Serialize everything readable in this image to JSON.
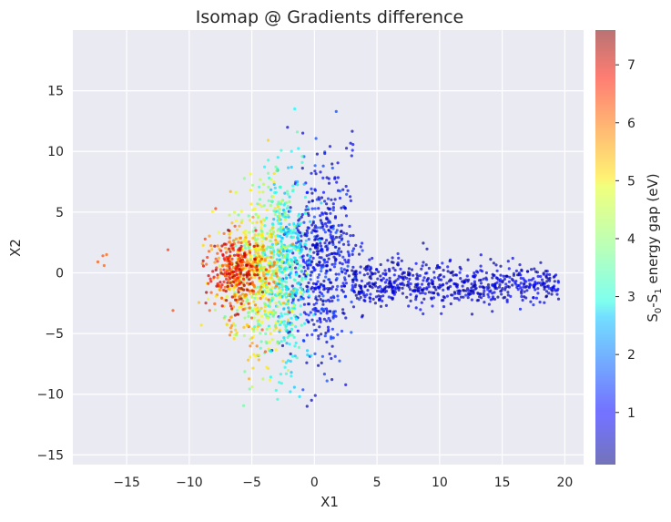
{
  "chart_data": {
    "type": "scatter",
    "title": "Isomap @ Gradients difference",
    "xlabel": "X1",
    "ylabel": "X2",
    "xlim": [
      -19.3,
      21.5
    ],
    "ylim": [
      -15.8,
      20.0
    ],
    "xticks": [
      -15,
      -10,
      -5,
      0,
      5,
      10,
      15,
      20
    ],
    "yticks": [
      -15,
      -10,
      -5,
      0,
      5,
      10,
      15
    ],
    "grid": true,
    "colorbar": {
      "label_main": "S",
      "label_sub0": "0",
      "label_mid": "-S",
      "label_sub1": "1",
      "label_tail": " energy gap (eV)",
      "colormap": "jet",
      "range": [
        0.1,
        7.6
      ],
      "ticks": [
        1,
        2,
        3,
        4,
        5,
        6,
        7
      ]
    },
    "colors": {
      "background": "#eaeaf2",
      "grid": "#ffffff",
      "text": "#262626"
    },
    "clusters": [
      {
        "name": "outliers-far-left",
        "points": [
          [
            -17.3,
            0.9,
            6.1
          ],
          [
            -16.9,
            1.4,
            6.1
          ],
          [
            -16.6,
            1.5,
            6.0
          ],
          [
            -16.8,
            0.6,
            6.0
          ],
          [
            -11.7,
            1.9,
            6.3
          ],
          [
            -11.3,
            -3.1,
            6.2
          ]
        ]
      },
      {
        "name": "red-core",
        "center": [
          -6.3,
          0.2
        ],
        "spread": [
          1.4,
          2.0
        ],
        "color_range": [
          5.6,
          7.6
        ],
        "count": 240
      },
      {
        "name": "orange-band",
        "center": [
          -5.5,
          -0.5
        ],
        "spread": [
          1.8,
          3.2
        ],
        "color_range": [
          4.8,
          6.2
        ],
        "count": 260
      },
      {
        "name": "yellow-green-band",
        "center": [
          -4.2,
          0.0
        ],
        "spread": [
          1.6,
          4.8
        ],
        "color_range": [
          3.5,
          5.2
        ],
        "count": 420
      },
      {
        "name": "cyan-band",
        "center": [
          -2.3,
          0.5
        ],
        "spread": [
          1.3,
          5.5
        ],
        "color_range": [
          2.3,
          3.6
        ],
        "count": 420
      },
      {
        "name": "blue-fan",
        "center": [
          0.6,
          0.8
        ],
        "spread": [
          1.8,
          5.2
        ],
        "color_range": [
          0.2,
          1.6
        ],
        "count": 560
      },
      {
        "name": "dark-blue-tail",
        "center": [
          12.0,
          -0.9
        ],
        "spread": [
          5.8,
          1.3
        ],
        "color_range": [
          0.1,
          1.2
        ],
        "count": 620
      }
    ]
  }
}
